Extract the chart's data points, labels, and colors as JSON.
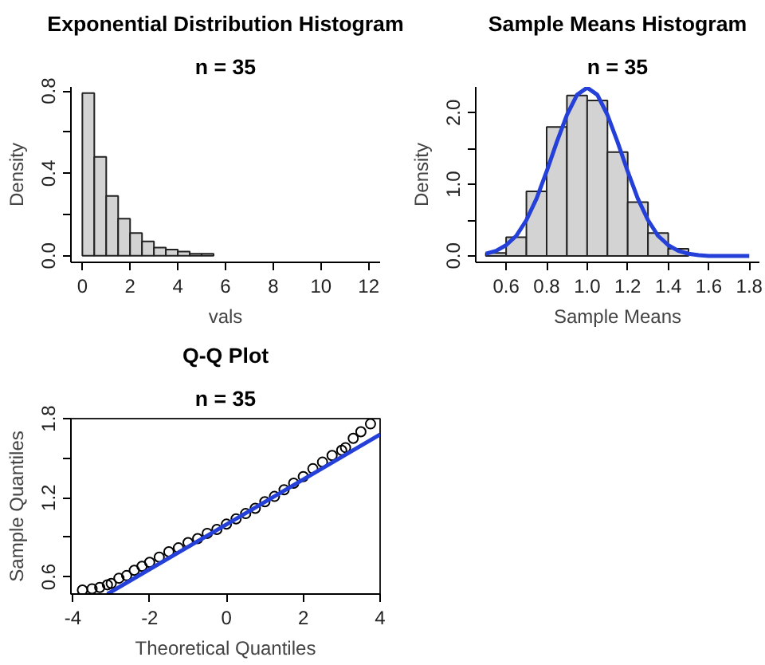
{
  "chart_data": [
    {
      "type": "histogram",
      "title": "Exponential Distribution Histogram",
      "subtitle": "n = 35",
      "xlabel": "vals",
      "ylabel": "Density",
      "color": "#d3d3d3",
      "bins": [
        0,
        0.5,
        1,
        1.5,
        2,
        2.5,
        3,
        3.5,
        4,
        4.5,
        5,
        5.5,
        6,
        6.5,
        7,
        7.5,
        8,
        8.5,
        9,
        9.5,
        10,
        10.5,
        11,
        11.5,
        12
      ],
      "values": [
        0.79,
        0.48,
        0.29,
        0.18,
        0.11,
        0.07,
        0.04,
        0.03,
        0.02,
        0.01,
        0.01,
        0,
        0,
        0,
        0,
        0,
        0,
        0,
        0,
        0,
        0,
        0,
        0,
        0
      ],
      "xlim": [
        -0.48,
        12.48
      ],
      "ylim": [
        -0.032,
        0.82
      ],
      "xticks": [
        0,
        2,
        4,
        6,
        8,
        10,
        12
      ],
      "yticks": [
        {
          "value": 0,
          "label": "0.0"
        },
        {
          "value": 0.2,
          "label": null
        },
        {
          "value": 0.4,
          "label": "0.4"
        },
        {
          "value": 0.6,
          "label": null
        },
        {
          "value": 0.8,
          "label": "0.8"
        }
      ],
      "grid": false
    },
    {
      "type": "histogram",
      "title": "Sample Means Histogram",
      "subtitle": "n = 35",
      "xlabel": "Sample Means",
      "ylabel": "Density",
      "color": "#d3d3d3",
      "bins": [
        0.5,
        0.6,
        0.7,
        0.8,
        0.9,
        1.0,
        1.1,
        1.2,
        1.3,
        1.4,
        1.5,
        1.6,
        1.7,
        1.8
      ],
      "values": [
        0.04,
        0.26,
        0.9,
        1.8,
        2.24,
        2.17,
        1.45,
        0.75,
        0.32,
        0.1,
        null,
        null,
        null
      ],
      "series": [
        {
          "type": "line",
          "color": "#2440d8",
          "x": [
            0.5,
            0.55,
            0.6,
            0.65,
            0.7,
            0.75,
            0.8,
            0.85,
            0.9,
            0.95,
            1.0,
            1.05,
            1.1,
            1.15,
            1.2,
            1.25,
            1.3,
            1.35,
            1.4,
            1.45,
            1.5,
            1.55,
            1.6,
            1.65,
            1.7,
            1.75,
            1.8
          ],
          "values": [
            0.03,
            0.07,
            0.15,
            0.28,
            0.5,
            0.8,
            1.18,
            1.59,
            1.97,
            2.25,
            2.35,
            2.25,
            1.97,
            1.59,
            1.18,
            0.8,
            0.5,
            0.28,
            0.15,
            0.07,
            0.03,
            0.01,
            0,
            0,
            0,
            0,
            0
          ]
        }
      ],
      "xlim": [
        0.45,
        1.85
      ],
      "ylim": [
        -0.09,
        2.36
      ],
      "xticks": [
        0.6,
        0.8,
        {
          "value": 1.0,
          "label": "1.0"
        },
        1.2,
        1.4,
        1.6,
        1.8
      ],
      "yticks": [
        {
          "value": 0,
          "label": "0.0"
        },
        {
          "value": 0.5,
          "label": null
        },
        {
          "value": 1.0,
          "label": "1.0"
        },
        {
          "value": 1.5,
          "label": null
        },
        {
          "value": 2.0,
          "label": "2.0"
        }
      ],
      "grid": false
    },
    {
      "type": "scatter",
      "title": "Q-Q Plot",
      "subtitle": "n = 35",
      "xlabel": "Theoretical Quantiles",
      "ylabel": "Sample Quantiles",
      "color": "#000000",
      "marker": "circle",
      "x": [
        -3.75,
        -3.5,
        -3.3,
        -3.1,
        -3.0,
        -2.8,
        -2.6,
        -2.4,
        -2.2,
        -2.0,
        -1.75,
        -1.5,
        -1.25,
        -1.0,
        -0.75,
        -0.5,
        -0.25,
        0,
        0.25,
        0.5,
        0.75,
        1.0,
        1.25,
        1.5,
        1.75,
        2.0,
        2.25,
        2.5,
        2.75,
        3.0,
        3.1,
        3.3,
        3.5,
        3.75
      ],
      "values": [
        0.5,
        0.51,
        0.52,
        0.54,
        0.55,
        0.59,
        0.61,
        0.65,
        0.68,
        0.71,
        0.75,
        0.79,
        0.82,
        0.86,
        0.89,
        0.93,
        0.96,
        1.0,
        1.04,
        1.08,
        1.12,
        1.17,
        1.21,
        1.26,
        1.31,
        1.36,
        1.42,
        1.47,
        1.52,
        1.56,
        1.58,
        1.65,
        1.7,
        1.76
      ],
      "series": [
        {
          "type": "line",
          "marker": "none",
          "color": "#2440d8",
          "x": [
            -3.1,
            4.0
          ],
          "values": [
            0.47,
            1.68
          ]
        }
      ],
      "xlim": [
        -4.05,
        4.0
      ],
      "ylim": [
        0.47,
        1.8
      ],
      "xticks": [
        -4,
        -2,
        0,
        2,
        4
      ],
      "yticks": [
        {
          "value": 0.6,
          "label": "0.6"
        },
        {
          "value": 0.9,
          "label": null
        },
        {
          "value": 1.2,
          "label": "1.2"
        },
        {
          "value": 1.5,
          "label": null
        },
        {
          "value": 1.8,
          "label": "1.8"
        }
      ],
      "grid": false
    }
  ]
}
